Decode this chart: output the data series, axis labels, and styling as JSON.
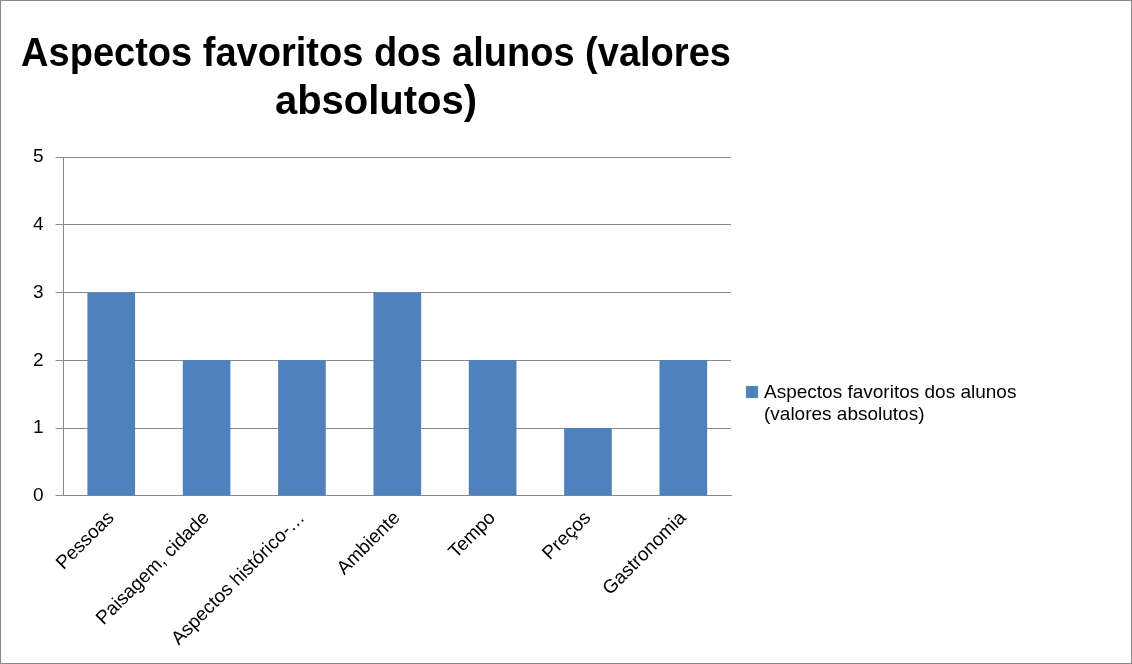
{
  "chart_data": {
    "type": "bar",
    "title": "Aspectos favoritos dos alunos (valores absolutos)",
    "categories": [
      "Pessoas",
      "Paisagem, cidade",
      "Aspectos histórico-…",
      "Ambiente",
      "Tempo",
      "Preços",
      "Gastronomia"
    ],
    "series": [
      {
        "name": "Aspectos favoritos dos alunos (valores absolutos)",
        "color": "#4f81bd",
        "values": [
          3,
          2,
          2,
          3,
          2,
          1,
          2
        ]
      }
    ],
    "ylim": [
      0,
      5
    ],
    "yticks": [
      0,
      1,
      2,
      3,
      4,
      5
    ],
    "grid": "y",
    "legend": "right"
  }
}
